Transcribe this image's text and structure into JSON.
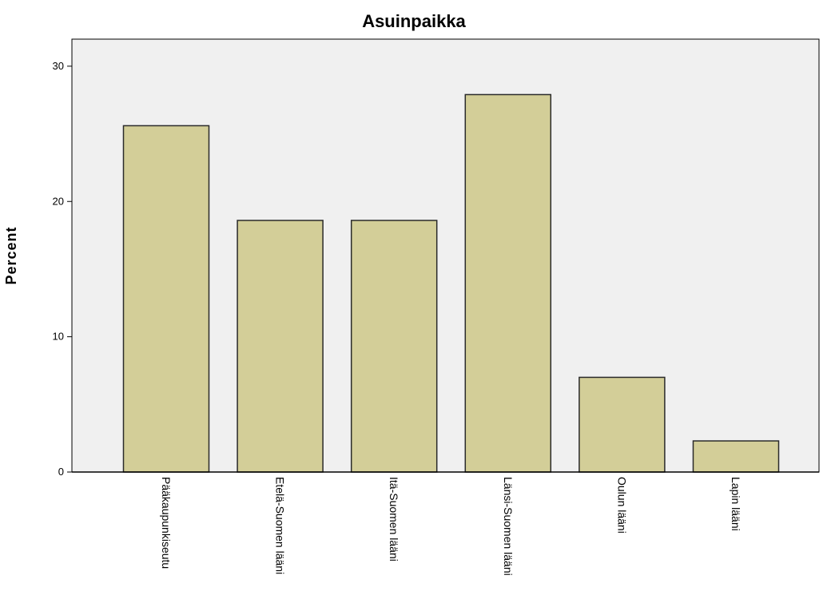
{
  "chart_data": {
    "type": "bar",
    "title": "Asuinpaikka",
    "xlabel": "",
    "ylabel": "Percent",
    "categories": [
      "Pääkaupunkiseutu",
      "Etelä-Suomen lääni",
      "Itä-Suomen lääni",
      "Länsi-Suomen lääni",
      "Oulun lääni",
      "Lapin lääni"
    ],
    "values": [
      25.6,
      18.6,
      18.6,
      27.9,
      7.0,
      2.3
    ],
    "ylim": [
      0,
      32
    ],
    "yticks": [
      0,
      10,
      20,
      30
    ],
    "grid": false,
    "legend": "none",
    "colors": {
      "bar_fill": "#d3ce98",
      "bar_stroke": "#2a2a2a",
      "plot_background": "#f0f0f0",
      "axis": "#000000"
    }
  }
}
